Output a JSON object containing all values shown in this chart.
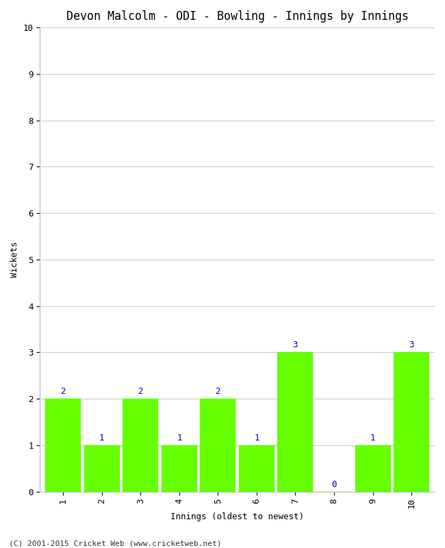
{
  "title": "Devon Malcolm - ODI - Bowling - Innings by Innings",
  "xlabel": "Innings (oldest to newest)",
  "ylabel": "Wickets",
  "categories": [
    "1",
    "2",
    "3",
    "4",
    "5",
    "6",
    "7",
    "8",
    "9",
    "10"
  ],
  "values": [
    2,
    1,
    2,
    1,
    2,
    1,
    3,
    0,
    1,
    3
  ],
  "bar_color": "#66ff00",
  "bar_edge_color": "#66ff00",
  "label_color": "#0000cc",
  "ylim": [
    0,
    10
  ],
  "yticks": [
    0,
    1,
    2,
    3,
    4,
    5,
    6,
    7,
    8,
    9,
    10
  ],
  "background_color": "#ffffff",
  "grid_color": "#cccccc",
  "title_fontsize": 12,
  "axis_label_fontsize": 9,
  "tick_fontsize": 9,
  "label_fontsize": 9,
  "footer": "(C) 2001-2015 Cricket Web (www.cricketweb.net)"
}
